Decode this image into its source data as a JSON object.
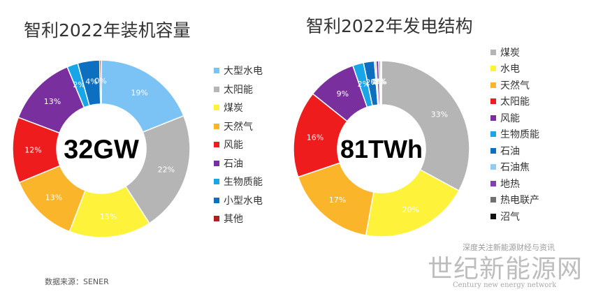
{
  "colors": {
    "light_blue": "#7CC3F5",
    "gray": "#B5B5B5",
    "yellow": "#FFF23A",
    "orange": "#FBB52B",
    "red": "#EE1C1C",
    "purple": "#7A2F9E",
    "cyan": "#19A6E8",
    "blue": "#0C6FC0",
    "dark_red": "#B01E1E",
    "sky": "#8ECDF5",
    "violet": "#8040B0",
    "dark_gray": "#707070",
    "black": "#111111"
  },
  "chart_data": [
    {
      "type": "pie",
      "title": "智利2022年装机容量",
      "center_label": "32GW",
      "series": [
        {
          "name": "大型水电",
          "value": 19,
          "label": "19%",
          "color_key": "light_blue"
        },
        {
          "name": "太阳能",
          "value": 22,
          "label": "22%",
          "color_key": "gray"
        },
        {
          "name": "煤炭",
          "value": 15,
          "label": "15%",
          "color_key": "yellow"
        },
        {
          "name": "天然气",
          "value": 13,
          "label": "13%",
          "color_key": "orange"
        },
        {
          "name": "风能",
          "value": 12,
          "label": "12%",
          "color_key": "red"
        },
        {
          "name": "石油",
          "value": 13,
          "label": "13%",
          "color_key": "purple"
        },
        {
          "name": "生物质能",
          "value": 2,
          "label": "2%",
          "color_key": "cyan"
        },
        {
          "name": "小型水电",
          "value": 4,
          "label": "4%",
          "color_key": "blue"
        },
        {
          "name": "其他",
          "value": 0.3,
          "label": "0%",
          "color_key": "dark_red"
        }
      ],
      "legend_position": "right"
    },
    {
      "type": "pie",
      "title": "智利2022年发电结构",
      "center_label": "81TWh",
      "series": [
        {
          "name": "煤炭",
          "value": 33,
          "label": "33%",
          "color_key": "gray"
        },
        {
          "name": "水电",
          "value": 20,
          "label": "20%",
          "color_key": "yellow"
        },
        {
          "name": "天然气",
          "value": 17,
          "label": "17%",
          "color_key": "orange"
        },
        {
          "name": "太阳能",
          "value": 16,
          "label": "16%",
          "color_key": "red"
        },
        {
          "name": "风能",
          "value": 9,
          "label": "9%",
          "color_key": "purple"
        },
        {
          "name": "生物质能",
          "value": 2,
          "label": "2%",
          "color_key": "cyan"
        },
        {
          "name": "石油",
          "value": 2,
          "label": "2%",
          "color_key": "blue"
        },
        {
          "name": "石油焦",
          "value": 0.3,
          "label": "0%",
          "color_key": "sky"
        },
        {
          "name": "地热",
          "value": 0.5,
          "label": "0%",
          "color_key": "violet"
        },
        {
          "name": "热电联产",
          "value": 0.3,
          "label": "0%",
          "color_key": "dark_gray"
        },
        {
          "name": "沼气",
          "value": 0.2,
          "label": "0%",
          "color_key": "black"
        }
      ],
      "legend_position": "right"
    }
  ],
  "source": "数据来源：SENER",
  "watermark": {
    "small": "深度关注新能源财经与资讯",
    "big": "世纪新能源网",
    "en": "Century new energy network"
  }
}
